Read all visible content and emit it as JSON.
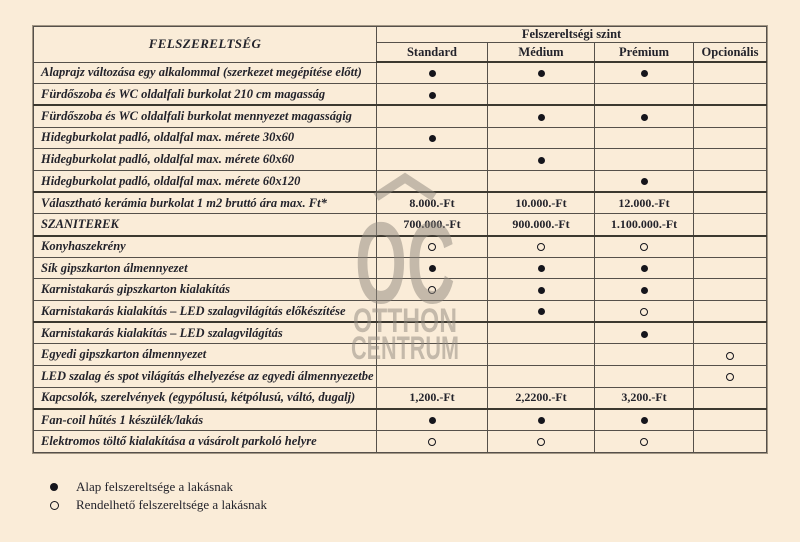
{
  "table": {
    "col1_header": "FELSZERELTSÉG",
    "group_header": "Felszereltségi szint",
    "level_headers": [
      "Standard",
      "Médium",
      "Prémium",
      "Opcionális"
    ],
    "rows": [
      {
        "label": "Alaprajz változása egy alkalommal (szerkezet megépítése előtt)",
        "cells": [
          "filled",
          "filled",
          "filled",
          ""
        ],
        "thick": false
      },
      {
        "label": "Fürdőszoba és WC oldalfali burkolat 210 cm magasság",
        "cells": [
          "filled",
          "",
          "",
          ""
        ],
        "thick": true
      },
      {
        "label": "Fürdőszoba és WC oldalfali burkolat mennyezet magasságig",
        "cells": [
          "",
          "filled",
          "filled",
          ""
        ],
        "thick": false
      },
      {
        "label": "Hidegburkolat  padló, oldalfal max. mérete 30x60",
        "cells": [
          "filled",
          "",
          "",
          ""
        ],
        "thick": false
      },
      {
        "label": "Hidegburkolat  padló, oldalfal  max. mérete 60x60",
        "cells": [
          "",
          "filled",
          "",
          ""
        ],
        "thick": false
      },
      {
        "label": "Hidegburkolat  padló, oldalfal max. mérete 60x120",
        "cells": [
          "",
          "",
          "filled",
          ""
        ],
        "thick": true
      },
      {
        "label": "Választható kerámia burkolat 1 m2 bruttó ára max. Ft*",
        "cells": [
          "8.000.-Ft",
          "10.000.-Ft",
          "12.000.-Ft",
          ""
        ],
        "thick": false
      },
      {
        "label": "SZANITEREK",
        "cells": [
          "700.000.-Ft",
          "900.000.-Ft",
          "1.100.000.-Ft",
          ""
        ],
        "thick": true
      },
      {
        "label": "Konyhaszekrény",
        "cells": [
          "open",
          "open",
          "open",
          ""
        ],
        "thick": false
      },
      {
        "label": "Sík gipszkarton álmennyezet",
        "cells": [
          "filled",
          "filled",
          "filled",
          ""
        ],
        "thick": false
      },
      {
        "label": "Karnistakarás gipszkarton kialakítás",
        "cells": [
          "open",
          "filled",
          "filled",
          ""
        ],
        "thick": false
      },
      {
        "label": "Karnistakarás kialakítás – LED szalagvilágítás előkészítése",
        "cells": [
          "",
          "filled",
          "open",
          ""
        ],
        "thick": true
      },
      {
        "label": "Karnistakarás kialakítás – LED szalagvilágítás",
        "cells": [
          "",
          "",
          "filled",
          ""
        ],
        "thick": false
      },
      {
        "label": "Egyedi gipszkarton álmennyezet",
        "cells": [
          "",
          "",
          "",
          "open"
        ],
        "thick": false
      },
      {
        "label": "LED szalag és spot világítás elhelyezése az egyedi álmennyezetbe",
        "cells": [
          "",
          "",
          "",
          "open"
        ],
        "thick": false
      },
      {
        "label": "Kapcsolók, szerelvények (egypólusú, kétpólusú, váltó, dugalj)",
        "cells": [
          "1,200.-Ft",
          "2,2200.-Ft",
          "3,200.-Ft",
          ""
        ],
        "thick": true
      },
      {
        "label": "Fan-coil hűtés 1 készülék/lakás",
        "cells": [
          "filled",
          "filled",
          "filled",
          ""
        ],
        "thick": false
      },
      {
        "label": "Elektromos töltő kialakítása a vásárolt parkoló helyre",
        "cells": [
          "open",
          "open",
          "open",
          ""
        ],
        "thick": false
      }
    ]
  },
  "legend": {
    "items": [
      {
        "marker": "filled",
        "label": "Alap felszereltsége a lakásnak"
      },
      {
        "marker": "open",
        "label": "Rendelhető felszereltsége a lakásnak"
      }
    ]
  },
  "watermark": {
    "monogram": "OC",
    "line1": "OTTHON",
    "line2": "CENTRUM"
  },
  "colors": {
    "background": "#faecd8",
    "grid": "#55504a",
    "text": "#23232b",
    "watermark": "#8f887e"
  }
}
